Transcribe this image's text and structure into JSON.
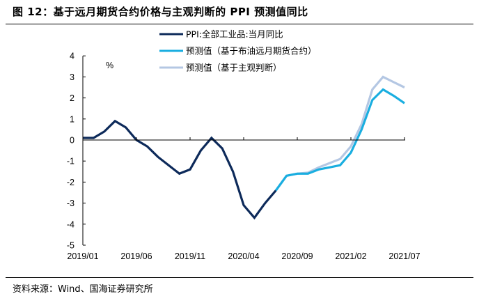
{
  "header": {
    "title": "图 12：基于远月期货合约价格与主观判断的 PPI 预测值同比"
  },
  "footer": {
    "source": "资料来源：Wind、国海证券研究所"
  },
  "colors": {
    "actual": "#0d2a5a",
    "forecast_futures": "#1aaee0",
    "forecast_subjective": "#b4c7e3",
    "axis": "#000000"
  },
  "chart_data": {
    "type": "line",
    "title": "",
    "unit_label": "%",
    "xlabel": "",
    "ylabel": "%",
    "ylim": [
      -5,
      4
    ],
    "yticks": [
      4,
      3,
      2,
      1,
      0,
      -1,
      -2,
      -3,
      -4,
      -5
    ],
    "x": [
      "2019/01",
      "2019/02",
      "2019/03",
      "2019/04",
      "2019/05",
      "2019/06",
      "2019/07",
      "2019/08",
      "2019/09",
      "2019/10",
      "2019/11",
      "2019/12",
      "2020/01",
      "2020/02",
      "2020/03",
      "2020/04",
      "2020/05",
      "2020/06",
      "2020/07",
      "2020/08",
      "2020/09",
      "2020/10",
      "2020/11",
      "2020/12",
      "2021/01",
      "2021/02",
      "2021/03",
      "2021/04",
      "2021/05",
      "2021/06",
      "2021/07"
    ],
    "xtick_labels": [
      "2019/01",
      "2019/06",
      "2019/11",
      "2020/04",
      "2020/09",
      "2021/02",
      "2021/07"
    ],
    "grid": false,
    "legend_position": "top-center",
    "series": [
      {
        "name": "PPI:全部工业品:当月同比",
        "color_key": "actual",
        "values": [
          0.1,
          0.1,
          0.4,
          0.9,
          0.6,
          0.0,
          -0.3,
          -0.8,
          -1.2,
          -1.6,
          -1.4,
          -0.5,
          0.1,
          -0.4,
          -1.5,
          -3.1,
          -3.7,
          -3.0,
          -2.4,
          null,
          null,
          null,
          null,
          null,
          null,
          null,
          null,
          null,
          null,
          null,
          null
        ]
      },
      {
        "name": "预测值（基于布油远月期货合约）",
        "color_key": "forecast_futures",
        "values": [
          null,
          null,
          null,
          null,
          null,
          null,
          null,
          null,
          null,
          null,
          null,
          null,
          null,
          null,
          null,
          null,
          null,
          null,
          -2.4,
          -1.7,
          -1.6,
          -1.6,
          -1.4,
          -1.3,
          -1.2,
          -0.6,
          0.5,
          1.9,
          2.4,
          2.1,
          1.75
        ]
      },
      {
        "name": "预测值（基于主观判断）",
        "color_key": "forecast_subjective",
        "values": [
          null,
          null,
          null,
          null,
          null,
          null,
          null,
          null,
          null,
          null,
          null,
          null,
          null,
          null,
          null,
          null,
          null,
          null,
          -2.4,
          -1.7,
          -1.6,
          -1.55,
          -1.3,
          -1.1,
          -0.9,
          -0.3,
          0.75,
          2.4,
          3.0,
          2.75,
          2.5
        ]
      }
    ]
  }
}
